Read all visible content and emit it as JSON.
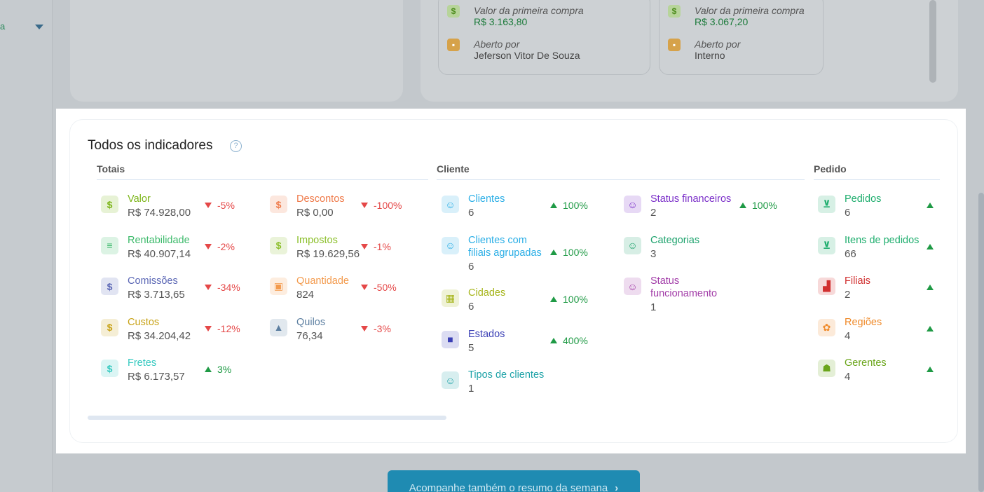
{
  "sidebar": {
    "fragment_text": "a"
  },
  "first_purchase_cards": [
    {
      "first_purchase_label": "Valor da primeira compra",
      "first_purchase_value": "R$ 3.163,80",
      "opened_by_label": "Aberto por",
      "opened_by_value": "Jeferson Vitor De Souza"
    },
    {
      "first_purchase_label": "Valor da primeira compra",
      "first_purchase_value": "R$ 3.067,20",
      "opened_by_label": "Aberto por",
      "opened_by_value": "Interno"
    }
  ],
  "indicators": {
    "title": "Todos os indicadores",
    "help_icon": "?",
    "sections": {
      "totais": "Totais",
      "cliente": "Cliente",
      "pedido": "Pedido"
    },
    "totais_left": [
      {
        "name": "Valor",
        "value": "R$ 74.928,00",
        "delta": "-5%",
        "icon": "$",
        "color": "#7cb518"
      },
      {
        "name": "Rentabilidade",
        "value": "R$ 40.907,14",
        "delta": "-2%",
        "icon": "≡",
        "color": "#3dba6b"
      },
      {
        "name": "Comissões",
        "value": "R$ 3.713,65",
        "delta": "-34%",
        "icon": "$",
        "color": "#5b67b5"
      },
      {
        "name": "Custos",
        "value": "R$ 34.204,42",
        "delta": "-12%",
        "icon": "$",
        "color": "#c8a318"
      },
      {
        "name": "Fretes",
        "value": "R$ 6.173,57",
        "delta": "3%",
        "icon": "$",
        "color": "#35c9c0"
      }
    ],
    "totais_right": [
      {
        "name": "Descontos",
        "value": "R$ 0,00",
        "delta": "-100%",
        "icon": "$",
        "color": "#ef7a4a"
      },
      {
        "name": "Impostos",
        "value": "R$ 19.629,56",
        "delta": "-1%",
        "icon": "$",
        "color": "#8bbf2a"
      },
      {
        "name": "Quantidade",
        "value": "824",
        "delta": "-50%",
        "icon": "▣",
        "color": "#f39a4c"
      },
      {
        "name": "Quilos",
        "value": "76,34",
        "delta": "-3%",
        "icon": "▲",
        "color": "#5b7ea0"
      }
    ],
    "cliente_left": [
      {
        "name": "Clientes",
        "value": "6",
        "delta": "100%",
        "icon": "☺",
        "color": "#2aaee6"
      },
      {
        "name_line1": "Clientes com",
        "name_line2": "filiais agrupadas",
        "value": "6",
        "delta": "100%",
        "icon": "☺",
        "color": "#2aaee6"
      },
      {
        "name": "Cidades",
        "value": "6",
        "delta": "100%",
        "icon": "▦",
        "color": "#a6b51a"
      },
      {
        "name": "Estados",
        "value": "5",
        "delta": "400%",
        "icon": "■",
        "color": "#3a3fb5"
      },
      {
        "name": "Tipos de clientes",
        "value": "1",
        "delta": "",
        "icon": "☺",
        "color": "#1fa3a8"
      }
    ],
    "cliente_right": [
      {
        "name": "Status financeiros",
        "value": "2",
        "delta": "100%",
        "icon": "☺",
        "color": "#7b2fc9"
      },
      {
        "name": "Categorias",
        "value": "3",
        "delta": "",
        "icon": "☺",
        "color": "#1fa36e"
      },
      {
        "name_line1": "Status",
        "name_line2": "funcionamento",
        "value": "1",
        "delta": "",
        "icon": "☺",
        "color": "#a23ca8"
      }
    ],
    "pedido": [
      {
        "name": "Pedidos",
        "value": "6",
        "icon": "⊻",
        "color": "#1fae6e"
      },
      {
        "name": "Itens de pedidos",
        "value": "66",
        "icon": "⊻",
        "color": "#1fae6e"
      },
      {
        "name": "Filiais",
        "value": "2",
        "icon": "▟",
        "color": "#d12f2f"
      },
      {
        "name": "Regiões",
        "value": "4",
        "icon": "✿",
        "color": "#ef8a2a"
      },
      {
        "name": "Gerentes",
        "value": "4",
        "icon": "☗",
        "color": "#6aa51a"
      }
    ]
  },
  "cta": {
    "label": "Acompanhe também o resumo da semana",
    "chevron": "›"
  }
}
